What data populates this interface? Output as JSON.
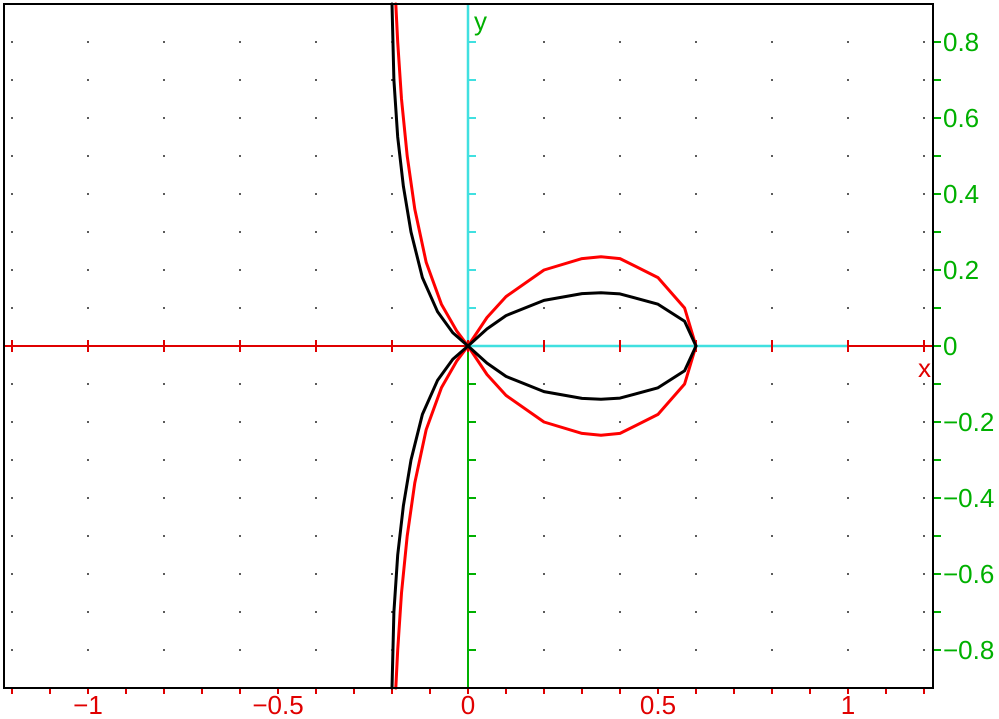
{
  "chart_data": {
    "type": "line",
    "xlabel": "x",
    "ylabel": "y",
    "xlim": [
      -1.23,
      1.23
    ],
    "ylim": [
      -0.9,
      0.9
    ],
    "grid": "dotted",
    "x_ticks": [
      -1,
      -0.5,
      0,
      0.5,
      1
    ],
    "x_tick_labels": [
      "−1",
      "−0.5",
      "0",
      "0.5",
      "1"
    ],
    "y_ticks": [
      0.8,
      0.6,
      0.4,
      0.2,
      0,
      -0.2,
      -0.4,
      -0.6,
      -0.8
    ],
    "y_tick_labels": [
      "0.8",
      "0.6",
      "0.4",
      "0.2",
      "0",
      "−0.2",
      "−0.4",
      "−0.6",
      "−0.8"
    ],
    "series": [
      {
        "color": "#ff0000",
        "x": [
          -0.19,
          -0.185,
          -0.175,
          -0.16,
          -0.14,
          -0.11,
          -0.07,
          -0.03,
          0,
          0.05,
          0.1,
          0.2,
          0.3,
          0.35,
          0.4,
          0.5,
          0.57,
          0.6
        ],
        "y": [
          -0.9,
          -0.8,
          -0.65,
          -0.5,
          -0.36,
          -0.22,
          -0.11,
          -0.04,
          0,
          0.075,
          0.13,
          0.2,
          0.23,
          0.235,
          0.23,
          0.18,
          0.1,
          0
        ]
      },
      {
        "color": "#000000",
        "x": [
          -0.2,
          -0.195,
          -0.185,
          -0.17,
          -0.15,
          -0.12,
          -0.08,
          -0.04,
          0,
          0.05,
          0.1,
          0.2,
          0.3,
          0.35,
          0.4,
          0.5,
          0.57,
          0.6
        ],
        "y": [
          -0.9,
          -0.7,
          -0.55,
          -0.42,
          -0.3,
          -0.18,
          -0.09,
          -0.035,
          0,
          0.045,
          0.08,
          0.12,
          0.138,
          0.14,
          0.137,
          0.11,
          0.065,
          0
        ]
      }
    ]
  }
}
